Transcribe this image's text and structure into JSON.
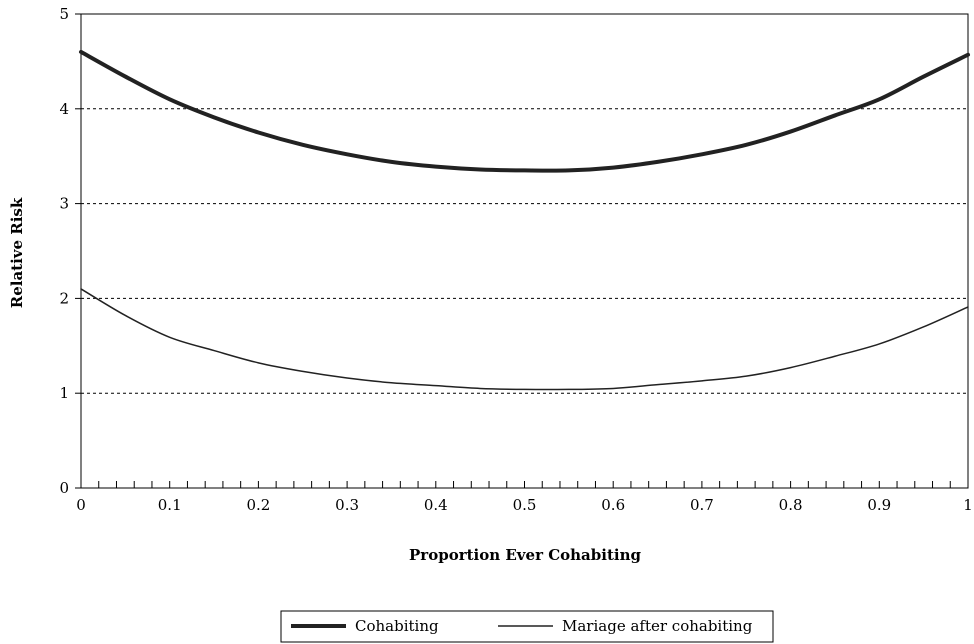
{
  "chart_data": {
    "type": "line",
    "title": "",
    "xlabel": "Proportion Ever Cohabiting",
    "ylabel": "Relative Risk",
    "xlim": [
      0,
      1
    ],
    "ylim": [
      0,
      5
    ],
    "x_ticks": [
      {
        "value": 0,
        "label": "0"
      },
      {
        "value": 0.1,
        "label": "0.1"
      },
      {
        "value": 0.2,
        "label": "0.2"
      },
      {
        "value": 0.3,
        "label": "0.3"
      },
      {
        "value": 0.4,
        "label": "0.4"
      },
      {
        "value": 0.5,
        "label": "0.5"
      },
      {
        "value": 0.6,
        "label": "0.6"
      },
      {
        "value": 0.7,
        "label": "0.7"
      },
      {
        "value": 0.8,
        "label": "0.8"
      },
      {
        "value": 0.9,
        "label": "0.9"
      },
      {
        "value": 1,
        "label": "1"
      }
    ],
    "x_minor_tick_step": 0.02,
    "y_ticks": [
      {
        "value": 0,
        "label": "0"
      },
      {
        "value": 1,
        "label": "1"
      },
      {
        "value": 2,
        "label": "2"
      },
      {
        "value": 3,
        "label": "3"
      },
      {
        "value": 4,
        "label": "4"
      },
      {
        "value": 5,
        "label": "5"
      }
    ],
    "grid": {
      "horizontal": true,
      "vertical": false,
      "style": "dotted",
      "values": [
        1,
        2,
        3,
        4
      ]
    },
    "legend_position": "bottom-center",
    "x": [
      0,
      0.05,
      0.1,
      0.15,
      0.2,
      0.25,
      0.3,
      0.35,
      0.4,
      0.45,
      0.5,
      0.55,
      0.6,
      0.65,
      0.7,
      0.75,
      0.8,
      0.85,
      0.9,
      0.95,
      1
    ],
    "series": [
      {
        "name": "Cohabiting",
        "style": "thick",
        "values": [
          4.6,
          4.34,
          4.1,
          3.91,
          3.75,
          3.62,
          3.52,
          3.44,
          3.39,
          3.36,
          3.35,
          3.35,
          3.38,
          3.44,
          3.52,
          3.62,
          3.76,
          3.93,
          4.1,
          4.34,
          4.57
        ]
      },
      {
        "name": "Mariage after cohabiting",
        "style": "thin",
        "values": [
          2.1,
          1.82,
          1.59,
          1.45,
          1.32,
          1.23,
          1.16,
          1.11,
          1.08,
          1.05,
          1.04,
          1.04,
          1.05,
          1.09,
          1.13,
          1.18,
          1.27,
          1.39,
          1.52,
          1.7,
          1.91
        ]
      }
    ],
    "colors": {
      "line": "#222222",
      "axis": "#000000",
      "grid": "#000000"
    }
  }
}
